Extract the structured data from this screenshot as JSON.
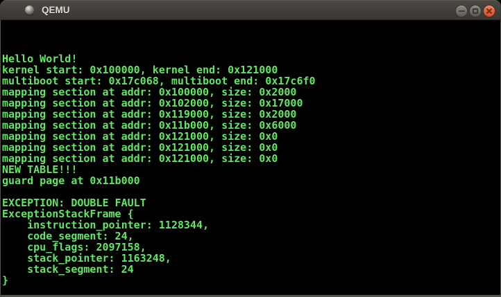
{
  "window": {
    "title": "QEMU",
    "controls": {
      "minimize": {
        "label": "minimize",
        "icon": "minus-icon"
      },
      "maximize": {
        "label": "maximize",
        "icon": "square-icon"
      },
      "close": {
        "label": "close",
        "icon": "x-icon"
      }
    },
    "app_icon": "qemu-orb-icon"
  },
  "theme": {
    "titlebar_top": "#4b4944",
    "titlebar_bottom": "#393733",
    "title_text_color": "#dfdbd4",
    "window_button_gray": "#8a8780",
    "close_button_orange": "#e4602f",
    "window_border": "#55534e",
    "terminal_background": "#000000",
    "terminal_text_color": "#62e762"
  },
  "terminal": {
    "lines": [
      "",
      "",
      "",
      "Hello World!",
      "kernel start: 0x100000, kernel end: 0x121000",
      "multiboot start: 0x17c068, multiboot end: 0x17c6f0",
      "mapping section at addr: 0x100000, size: 0x2000",
      "mapping section at addr: 0x102000, size: 0x17000",
      "mapping section at addr: 0x119000, size: 0x2000",
      "mapping section at addr: 0x11b000, size: 0x6000",
      "mapping section at addr: 0x121000, size: 0x0",
      "mapping section at addr: 0x121000, size: 0x0",
      "mapping section at addr: 0x121000, size: 0x0",
      "NEW TABLE!!!",
      "guard page at 0x11b000",
      "",
      "EXCEPTION: DOUBLE FAULT",
      "ExceptionStackFrame {",
      "    instruction_pointer: 1128344,",
      "    code_segment: 24,",
      "    cpu_flags: 2097158,",
      "    stack_pointer: 1163248,",
      "    stack_segment: 24",
      "}"
    ]
  }
}
